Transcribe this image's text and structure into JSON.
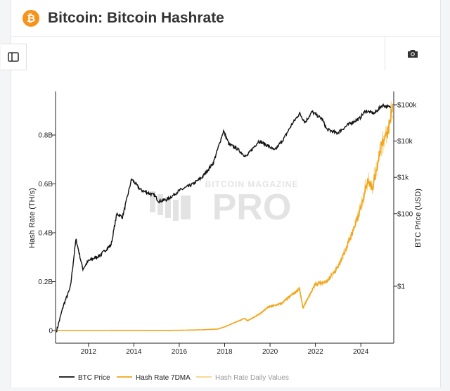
{
  "header": {
    "title": "Bitcoin: Bitcoin Hashrate",
    "logo_icon": "bitcoin-icon",
    "logo_glyph": "₿"
  },
  "toolbar": {
    "sidebar_icon": "sidebar-toggle-icon",
    "camera_icon": "camera-icon"
  },
  "watermark": {
    "line1": "BITCOIN MAGAZINE",
    "line2": "PRO"
  },
  "colors": {
    "btc_price": "#111111",
    "hashrate_7dma": "#f2a51c",
    "hashrate_daily": "#f5d48a",
    "bitcoin_orange": "#f7931a"
  },
  "chart_data": {
    "type": "line",
    "x_ticks": [
      "2012",
      "2014",
      "2016",
      "2018",
      "2020",
      "2022",
      "2024"
    ],
    "xlim": [
      "2010-08",
      "2025-06"
    ],
    "y_left": {
      "label": "Hash Rate (TH/s)",
      "ticks": [
        "0",
        "0.2B",
        "0.4B",
        "0.6B",
        "0.8B"
      ],
      "ylim": [
        0,
        0.93
      ]
    },
    "y_right": {
      "label": "BTC Price (USD)",
      "scale": "log",
      "ticks": [
        "$1",
        "$100",
        "$1k",
        "$10k",
        "$100k"
      ],
      "tick_values": [
        1,
        100,
        1000,
        10000,
        100000
      ],
      "ylim": [
        0.01,
        300000
      ]
    },
    "legend": [
      "BTC Price",
      "Hash Rate 7DMA",
      "Hash Rate Daily Values"
    ],
    "legend_position": "bottom",
    "series": [
      {
        "name": "BTC Price",
        "axis": "right",
        "x": [
          2010.6,
          2010.9,
          2011.2,
          2011.45,
          2011.75,
          2012.0,
          2012.5,
          2013.0,
          2013.25,
          2013.5,
          2013.9,
          2014.3,
          2014.9,
          2015.1,
          2015.5,
          2016.0,
          2016.6,
          2017.0,
          2017.5,
          2017.95,
          2018.2,
          2018.5,
          2018.95,
          2019.5,
          2019.95,
          2020.2,
          2020.6,
          2020.95,
          2021.3,
          2021.55,
          2021.85,
          2022.3,
          2022.5,
          2022.95,
          2023.5,
          2023.95,
          2024.2,
          2024.6,
          2024.95,
          2025.3
        ],
        "y": [
          0.06,
          0.3,
          0.9,
          20,
          3,
          5,
          7,
          14,
          100,
          80,
          900,
          450,
          320,
          220,
          250,
          430,
          650,
          1000,
          2500,
          19000,
          8000,
          6500,
          3700,
          10000,
          7200,
          5500,
          11500,
          28000,
          58000,
          33000,
          64000,
          40000,
          21000,
          16500,
          30000,
          42000,
          68000,
          58000,
          98000,
          84000
        ]
      },
      {
        "name": "Hash Rate 7DMA",
        "axis": "left",
        "x": [
          2010.6,
          2012.0,
          2014.0,
          2016.0,
          2017.0,
          2017.7,
          2018.0,
          2018.5,
          2018.9,
          2019.0,
          2019.5,
          2019.9,
          2020.5,
          2021.0,
          2021.3,
          2021.45,
          2021.6,
          2022.0,
          2022.5,
          2023.0,
          2023.5,
          2023.9,
          2024.3,
          2024.5,
          2024.9,
          2025.2,
          2025.4
        ],
        "y": [
          0,
          0,
          0.0003,
          0.0008,
          0.003,
          0.006,
          0.015,
          0.035,
          0.05,
          0.04,
          0.065,
          0.095,
          0.11,
          0.15,
          0.17,
          0.09,
          0.12,
          0.19,
          0.2,
          0.26,
          0.37,
          0.47,
          0.62,
          0.58,
          0.76,
          0.81,
          0.92
        ]
      }
    ]
  }
}
